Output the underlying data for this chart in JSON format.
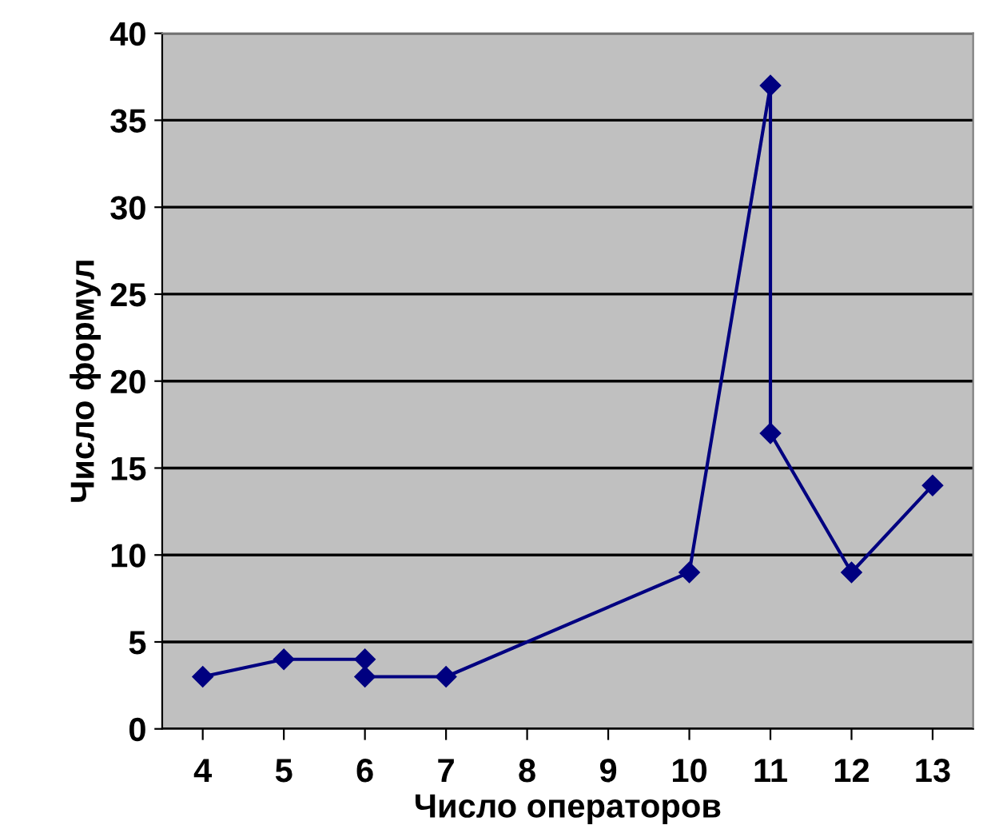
{
  "chart_data": {
    "type": "line",
    "xlabel": "Число операторов",
    "ylabel": "Число формул",
    "x": [
      4,
      5,
      6,
      6,
      7,
      10,
      11,
      11,
      12,
      13
    ],
    "series": [
      {
        "color": "#000080",
        "values": [
          3,
          4,
          4,
          3,
          3,
          9,
          37,
          17,
          9,
          14
        ]
      }
    ],
    "xlim": [
      3.5,
      13.5
    ],
    "xticks": [
      4,
      5,
      6,
      7,
      8,
      9,
      10,
      11,
      12,
      13
    ],
    "ylim": [
      0,
      40
    ],
    "yticks": [
      0,
      5,
      10,
      15,
      20,
      25,
      30,
      35,
      40
    ],
    "grid": "y",
    "marker": "diamond",
    "line_style": "solid"
  }
}
